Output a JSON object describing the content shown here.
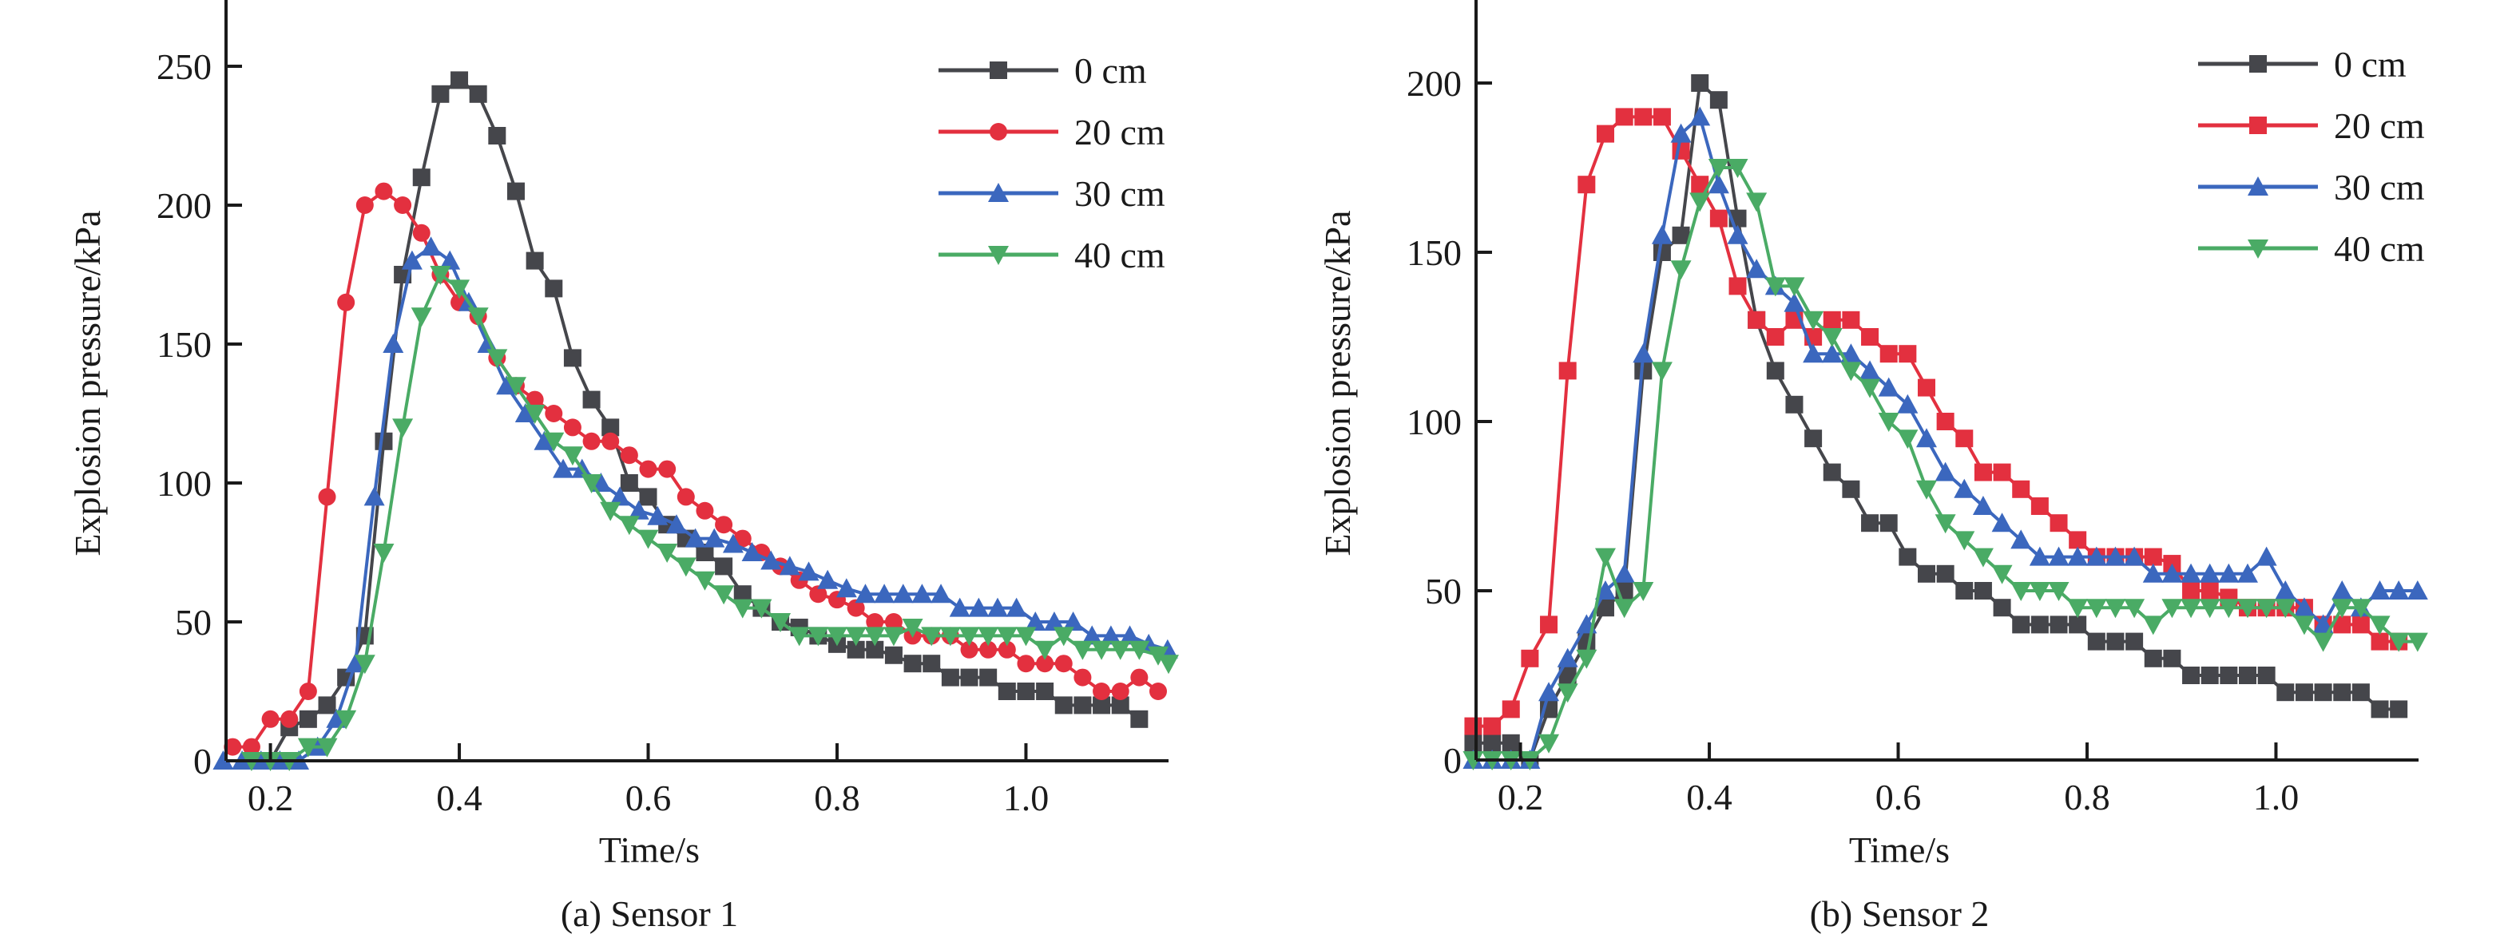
{
  "chart_data": [
    {
      "type": "line",
      "caption": "(a) Sensor 1",
      "xlabel": "Time/s",
      "ylabel": "Explosion pressure/kPa",
      "xlim": [
        0.153,
        1.151
      ],
      "ylim": [
        0,
        275
      ],
      "xticks": [
        0.2,
        0.4,
        0.6,
        0.8,
        1.0
      ],
      "xtick_labels": [
        "0.2",
        "0.4",
        "0.6",
        "0.8",
        "1.0"
      ],
      "yticks": [
        0,
        50,
        100,
        150,
        200,
        250
      ],
      "ytick_labels": [
        "0",
        "50",
        "100",
        "150",
        "200",
        "250"
      ],
      "grid": false,
      "legend_position": "top-right",
      "series": [
        {
          "name": "0 cm",
          "color": "#45464b",
          "marker": "square",
          "x": [
            0.2,
            0.22,
            0.24,
            0.26,
            0.28,
            0.3,
            0.32,
            0.34,
            0.36,
            0.38,
            0.4,
            0.42,
            0.44,
            0.46,
            0.48,
            0.5,
            0.52,
            0.54,
            0.56,
            0.58,
            0.6,
            0.62,
            0.64,
            0.66,
            0.68,
            0.7,
            0.72,
            0.74,
            0.76,
            0.78,
            0.8,
            0.82,
            0.84,
            0.86,
            0.88,
            0.9,
            0.92,
            0.94,
            0.96,
            0.98,
            1.0,
            1.02,
            1.04,
            1.06,
            1.08,
            1.1,
            1.12
          ],
          "values": [
            0,
            12,
            15,
            20,
            30,
            45,
            115,
            175,
            210,
            240,
            245,
            240,
            225,
            205,
            180,
            170,
            145,
            130,
            120,
            100,
            95,
            85,
            80,
            75,
            70,
            60,
            55,
            50,
            48,
            45,
            42,
            40,
            40,
            38,
            35,
            35,
            30,
            30,
            30,
            25,
            25,
            25,
            20,
            20,
            20,
            20,
            15
          ]
        },
        {
          "name": "20 cm",
          "color": "#e3303f",
          "marker": "circle",
          "x": [
            0.16,
            0.18,
            0.2,
            0.22,
            0.24,
            0.26,
            0.28,
            0.3,
            0.32,
            0.34,
            0.36,
            0.38,
            0.4,
            0.42,
            0.44,
            0.46,
            0.48,
            0.5,
            0.52,
            0.54,
            0.56,
            0.58,
            0.6,
            0.62,
            0.64,
            0.66,
            0.68,
            0.7,
            0.72,
            0.74,
            0.76,
            0.78,
            0.8,
            0.82,
            0.84,
            0.86,
            0.88,
            0.9,
            0.92,
            0.94,
            0.96,
            0.98,
            1.0,
            1.02,
            1.04,
            1.06,
            1.08,
            1.1,
            1.12,
            1.14
          ],
          "values": [
            5,
            5,
            15,
            15,
            25,
            95,
            165,
            200,
            205,
            200,
            190,
            175,
            165,
            160,
            145,
            135,
            130,
            125,
            120,
            115,
            115,
            110,
            105,
            105,
            95,
            90,
            85,
            80,
            75,
            70,
            65,
            60,
            58,
            55,
            50,
            50,
            45,
            45,
            45,
            40,
            40,
            40,
            35,
            35,
            35,
            30,
            25,
            25,
            30,
            25
          ]
        },
        {
          "name": "30 cm",
          "color": "#3b67be",
          "marker": "triangle-up",
          "x": [
            0.15,
            0.17,
            0.19,
            0.21,
            0.23,
            0.25,
            0.27,
            0.29,
            0.31,
            0.33,
            0.35,
            0.37,
            0.39,
            0.41,
            0.43,
            0.45,
            0.47,
            0.49,
            0.51,
            0.53,
            0.55,
            0.57,
            0.59,
            0.61,
            0.63,
            0.65,
            0.67,
            0.69,
            0.71,
            0.73,
            0.75,
            0.77,
            0.79,
            0.81,
            0.83,
            0.85,
            0.87,
            0.89,
            0.91,
            0.93,
            0.95,
            0.97,
            0.99,
            1.01,
            1.03,
            1.05,
            1.07,
            1.09,
            1.11,
            1.13,
            1.15
          ],
          "values": [
            0,
            0,
            0,
            0,
            0,
            5,
            15,
            35,
            95,
            150,
            180,
            185,
            180,
            165,
            150,
            135,
            125,
            115,
            105,
            105,
            100,
            95,
            90,
            88,
            85,
            80,
            80,
            78,
            75,
            72,
            70,
            68,
            65,
            62,
            60,
            60,
            60,
            60,
            60,
            55,
            55,
            55,
            55,
            50,
            50,
            50,
            45,
            45,
            45,
            42,
            40
          ]
        },
        {
          "name": "40 cm",
          "color": "#4aab65",
          "marker": "triangle-down",
          "x": [
            0.18,
            0.2,
            0.22,
            0.24,
            0.26,
            0.28,
            0.3,
            0.32,
            0.34,
            0.36,
            0.38,
            0.4,
            0.42,
            0.44,
            0.46,
            0.48,
            0.5,
            0.52,
            0.54,
            0.56,
            0.58,
            0.6,
            0.62,
            0.64,
            0.66,
            0.68,
            0.7,
            0.72,
            0.74,
            0.76,
            0.78,
            0.8,
            0.82,
            0.84,
            0.86,
            0.88,
            0.9,
            0.92,
            0.94,
            0.96,
            0.98,
            1.0,
            1.02,
            1.04,
            1.06,
            1.08,
            1.1,
            1.12,
            1.14,
            1.16
          ],
          "values": [
            0,
            0,
            0,
            5,
            5,
            15,
            35,
            75,
            120,
            160,
            175,
            170,
            160,
            145,
            135,
            125,
            115,
            110,
            100,
            90,
            85,
            80,
            75,
            70,
            65,
            60,
            55,
            55,
            50,
            45,
            45,
            45,
            45,
            45,
            45,
            48,
            45,
            45,
            45,
            45,
            45,
            45,
            40,
            45,
            40,
            40,
            40,
            40,
            38,
            35
          ]
        }
      ]
    },
    {
      "type": "line",
      "caption": "(b) Sensor 2",
      "xlabel": "Time/s",
      "ylabel": "Explosion pressure/kPa",
      "xlim": [
        0.153,
        1.151
      ],
      "ylim": [
        0,
        225
      ],
      "xticks": [
        0.2,
        0.4,
        0.6,
        0.8,
        1.0
      ],
      "xtick_labels": [
        "0.2",
        "0.4",
        "0.6",
        "0.8",
        "1.0"
      ],
      "yticks": [
        0,
        50,
        100,
        150,
        200
      ],
      "ytick_labels": [
        "0",
        "50",
        "100",
        "150",
        "200"
      ],
      "grid": false,
      "legend_position": "top-right",
      "series": [
        {
          "name": "0 cm",
          "color": "#45464b",
          "marker": "square",
          "x": [
            0.15,
            0.17,
            0.19,
            0.21,
            0.23,
            0.25,
            0.27,
            0.29,
            0.31,
            0.33,
            0.35,
            0.37,
            0.39,
            0.41,
            0.43,
            0.45,
            0.47,
            0.49,
            0.51,
            0.53,
            0.55,
            0.57,
            0.59,
            0.61,
            0.63,
            0.65,
            0.67,
            0.69,
            0.71,
            0.73,
            0.75,
            0.77,
            0.79,
            0.81,
            0.83,
            0.85,
            0.87,
            0.89,
            0.91,
            0.93,
            0.95,
            0.97,
            0.99,
            1.01,
            1.03,
            1.05,
            1.07,
            1.09,
            1.11,
            1.13
          ],
          "values": [
            5,
            5,
            5,
            0,
            15,
            25,
            35,
            45,
            50,
            115,
            150,
            155,
            200,
            195,
            160,
            130,
            115,
            105,
            95,
            85,
            80,
            70,
            70,
            60,
            55,
            55,
            50,
            50,
            45,
            40,
            40,
            40,
            40,
            35,
            35,
            35,
            30,
            30,
            25,
            25,
            25,
            25,
            25,
            20,
            20,
            20,
            20,
            20,
            15,
            15
          ]
        },
        {
          "name": "20 cm",
          "color": "#e3303f",
          "marker": "square",
          "x": [
            0.15,
            0.17,
            0.19,
            0.21,
            0.23,
            0.25,
            0.27,
            0.29,
            0.31,
            0.33,
            0.35,
            0.37,
            0.39,
            0.41,
            0.43,
            0.45,
            0.47,
            0.49,
            0.51,
            0.53,
            0.55,
            0.57,
            0.59,
            0.61,
            0.63,
            0.65,
            0.67,
            0.69,
            0.71,
            0.73,
            0.75,
            0.77,
            0.79,
            0.81,
            0.83,
            0.85,
            0.87,
            0.89,
            0.91,
            0.93,
            0.95,
            0.97,
            0.99,
            1.01,
            1.03,
            1.05,
            1.07,
            1.09,
            1.11,
            1.13
          ],
          "values": [
            10,
            10,
            15,
            30,
            40,
            115,
            170,
            185,
            190,
            190,
            190,
            180,
            170,
            160,
            140,
            130,
            125,
            130,
            125,
            130,
            130,
            125,
            120,
            120,
            110,
            100,
            95,
            85,
            85,
            80,
            75,
            70,
            65,
            60,
            60,
            60,
            60,
            58,
            50,
            50,
            48,
            45,
            45,
            45,
            45,
            40,
            40,
            40,
            35,
            35
          ]
        },
        {
          "name": "30 cm",
          "color": "#3b67be",
          "marker": "triangle-up",
          "x": [
            0.15,
            0.17,
            0.19,
            0.21,
            0.23,
            0.25,
            0.27,
            0.29,
            0.31,
            0.33,
            0.35,
            0.37,
            0.39,
            0.41,
            0.43,
            0.45,
            0.47,
            0.49,
            0.51,
            0.53,
            0.55,
            0.57,
            0.59,
            0.61,
            0.63,
            0.65,
            0.67,
            0.69,
            0.71,
            0.73,
            0.75,
            0.77,
            0.79,
            0.81,
            0.83,
            0.85,
            0.87,
            0.89,
            0.91,
            0.93,
            0.95,
            0.97,
            0.99,
            1.01,
            1.03,
            1.05,
            1.07,
            1.09,
            1.11,
            1.13,
            1.15
          ],
          "values": [
            0,
            0,
            0,
            0,
            20,
            30,
            40,
            50,
            55,
            120,
            155,
            185,
            190,
            170,
            155,
            145,
            140,
            135,
            120,
            120,
            120,
            115,
            110,
            105,
            95,
            85,
            80,
            75,
            70,
            65,
            60,
            60,
            60,
            60,
            60,
            60,
            55,
            55,
            55,
            55,
            55,
            55,
            60,
            50,
            45,
            40,
            50,
            45,
            50,
            50,
            50
          ]
        },
        {
          "name": "40 cm",
          "color": "#4aab65",
          "marker": "triangle-down",
          "x": [
            0.15,
            0.17,
            0.19,
            0.21,
            0.23,
            0.25,
            0.27,
            0.29,
            0.31,
            0.33,
            0.35,
            0.37,
            0.39,
            0.41,
            0.43,
            0.45,
            0.47,
            0.49,
            0.51,
            0.53,
            0.55,
            0.57,
            0.59,
            0.61,
            0.63,
            0.65,
            0.67,
            0.69,
            0.71,
            0.73,
            0.75,
            0.77,
            0.79,
            0.81,
            0.83,
            0.85,
            0.87,
            0.89,
            0.91,
            0.93,
            0.95,
            0.97,
            0.99,
            1.01,
            1.03,
            1.05,
            1.07,
            1.09,
            1.11,
            1.13,
            1.15
          ],
          "values": [
            0,
            0,
            0,
            0,
            5,
            20,
            30,
            60,
            45,
            50,
            115,
            145,
            165,
            175,
            175,
            165,
            140,
            140,
            130,
            125,
            115,
            110,
            100,
            95,
            80,
            70,
            65,
            60,
            55,
            50,
            50,
            50,
            45,
            45,
            45,
            45,
            40,
            45,
            45,
            45,
            45,
            45,
            45,
            45,
            40,
            35,
            45,
            45,
            40,
            35,
            35
          ]
        }
      ]
    }
  ]
}
